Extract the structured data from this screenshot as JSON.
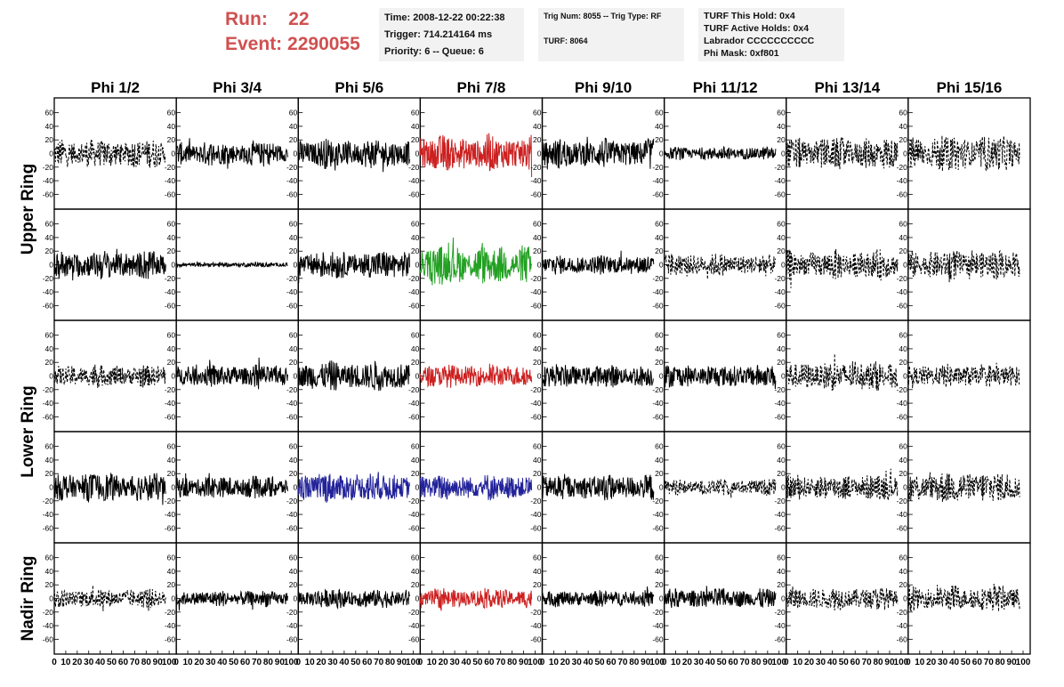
{
  "header": {
    "run_label": "Run:",
    "run_value": "22",
    "event_label": "Event:",
    "event_value": "2290055",
    "info_box_1": [
      "Time: 2008-12-22 00:22:38",
      "Trigger: 714.214164 ms",
      "Priority: 6 -- Queue: 6"
    ],
    "info_box_2": [
      "Trig Num: 8055 -- Trig Type: RF",
      "TURF: 8064"
    ],
    "info_box_3": [
      "TURF This Hold: 0x4",
      "TURF Active Holds: 0x4",
      "Labrador CCCCCCCCCC",
      "Phi Mask: 0xf801"
    ]
  },
  "colors": {
    "black": "#000000",
    "red": "#cc2020",
    "green": "#22a022",
    "blue": "#22229a",
    "header_red": "#d05050"
  },
  "chart_data": {
    "type": "line",
    "title": "",
    "columns": [
      "Phi 1/2",
      "Phi 3/4",
      "Phi 5/6",
      "Phi 7/8",
      "Phi 9/10",
      "Phi 11/12",
      "Phi 13/14",
      "Phi 15/16"
    ],
    "row_labels": [
      "Upper Ring",
      "Lower Ring",
      "Nadir Ring"
    ],
    "rows_per_label": [
      2,
      2,
      1
    ],
    "xlim": [
      0,
      100
    ],
    "ylim": [
      -70,
      70
    ],
    "x_ticks": [
      "0",
      "10",
      "20",
      "30",
      "40",
      "50",
      "60",
      "70",
      "80",
      "90",
      "100"
    ],
    "y_ticks": [
      -60,
      -40,
      -20,
      0,
      20,
      40,
      60
    ],
    "traces": [
      [
        "black",
        "black",
        "black",
        "red",
        "black",
        "black",
        "black",
        "black"
      ],
      [
        "black",
        "black",
        "black",
        "green",
        "black",
        "black",
        "black",
        "black"
      ],
      [
        "black",
        "black",
        "black",
        "red",
        "black",
        "black",
        "black",
        "black"
      ],
      [
        "black",
        "black",
        "blue",
        "blue",
        "black",
        "black",
        "black",
        "black"
      ],
      [
        "black",
        "black",
        "black",
        "red",
        "black",
        "black",
        "black",
        "black"
      ]
    ],
    "line_styles": [
      [
        "dashed",
        "solid",
        "solid",
        "solid",
        "solid",
        "solid",
        "dashed",
        "dashed"
      ],
      [
        "solid",
        "solid",
        "solid",
        "solid",
        "solid",
        "dashed",
        "dashed",
        "dashed"
      ],
      [
        "dashed",
        "solid",
        "solid",
        "solid",
        "solid",
        "solid",
        "dashed",
        "dashed"
      ],
      [
        "solid",
        "solid",
        "solid",
        "solid",
        "solid",
        "dashed",
        "dashed",
        "dashed"
      ],
      [
        "dashed",
        "solid",
        "solid",
        "solid",
        "solid",
        "solid",
        "dashed",
        "dashed"
      ]
    ],
    "amplitudes": [
      [
        18,
        15,
        18,
        22,
        18,
        8,
        20,
        22
      ],
      [
        18,
        3,
        18,
        24,
        12,
        14,
        18,
        18
      ],
      [
        14,
        14,
        18,
        14,
        14,
        14,
        18,
        14
      ],
      [
        18,
        14,
        18,
        16,
        16,
        10,
        16,
        20
      ],
      [
        12,
        10,
        12,
        12,
        10,
        12,
        14,
        16
      ]
    ]
  }
}
